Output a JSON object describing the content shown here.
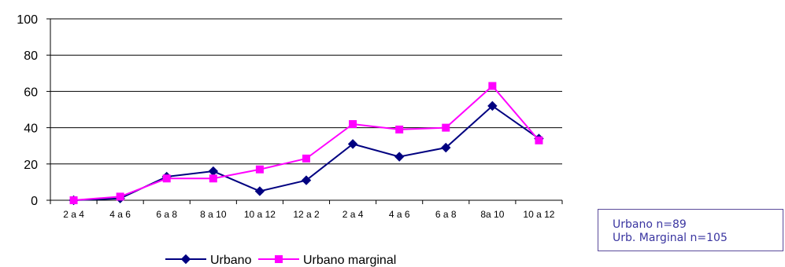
{
  "chart_data": {
    "type": "line",
    "title": "",
    "xlabel": "",
    "ylabel": "",
    "categories": [
      "2 a 4",
      "4 a 6",
      "6 a 8",
      "8 a 10",
      "10 a 12",
      "12 a 2",
      "2 a 4",
      "4 a 6",
      "6 a 8",
      "8a 10",
      "10 a 12"
    ],
    "ylim": [
      0,
      100
    ],
    "yticks": [
      0,
      20,
      40,
      60,
      80,
      100
    ],
    "grid": true,
    "legend_position": "bottom",
    "series": [
      {
        "name": "Urbano",
        "color": "#000080",
        "marker": "diamond",
        "values": [
          0,
          1,
          13,
          16,
          5,
          11,
          31,
          24,
          29,
          52,
          34
        ]
      },
      {
        "name": "Urbano marginal",
        "color": "#ff00ff",
        "marker": "square",
        "values": [
          0,
          2,
          12,
          12,
          17,
          23,
          42,
          39,
          40,
          63,
          33
        ]
      }
    ]
  },
  "note": {
    "line1": "Urbano n=89",
    "line2": "Urb. Marginal n=105",
    "color": "#3a35a0"
  }
}
